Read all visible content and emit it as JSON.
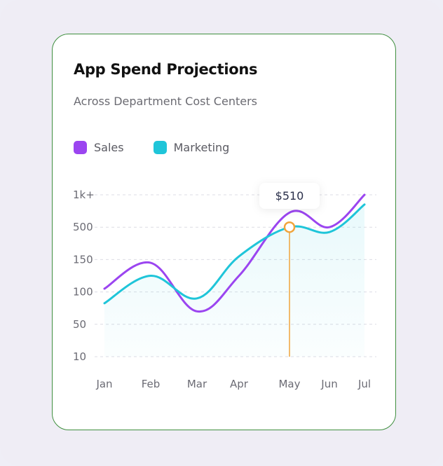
{
  "card": {
    "title": "App Spend Projections",
    "subtitle": "Across Department Cost Centers"
  },
  "legend": {
    "items": [
      {
        "label": "Sales",
        "color": "#9b45f0"
      },
      {
        "label": "Marketing",
        "color": "#1fc5d9"
      }
    ]
  },
  "chart_data": {
    "type": "line",
    "title": "App Spend Projections",
    "subtitle": "Across Department Cost Centers",
    "categories": [
      "Jan",
      "Feb",
      "Mar",
      "Apr",
      "May",
      "Jun",
      "Jul"
    ],
    "y_ticks": [
      "1k+",
      "500",
      "150",
      "100",
      "50",
      "10"
    ],
    "y_note": "Y axis uses ordinal tick levels: 10 = level 0, 50 = level 1, 100 = level 2, 150 = level 3, 500 = level 4, 1k+ = level 5; series values below are expressed on this level scale",
    "series": [
      {
        "name": "Sales",
        "color": "#9b45f0",
        "values": [
          2.1,
          2.9,
          1.4,
          2.5,
          4.45,
          4.0,
          5.0
        ],
        "fill": false
      },
      {
        "name": "Marketing",
        "color": "#1fc5d9",
        "values": [
          1.65,
          2.5,
          1.8,
          3.1,
          4.0,
          3.85,
          4.7
        ],
        "fill": true
      }
    ],
    "tooltip": {
      "category": "May",
      "label": "$510",
      "value_level": 4.0,
      "color": "#f0a43c"
    },
    "grid": "horizontal-dashed",
    "legend_position": "top-left"
  }
}
